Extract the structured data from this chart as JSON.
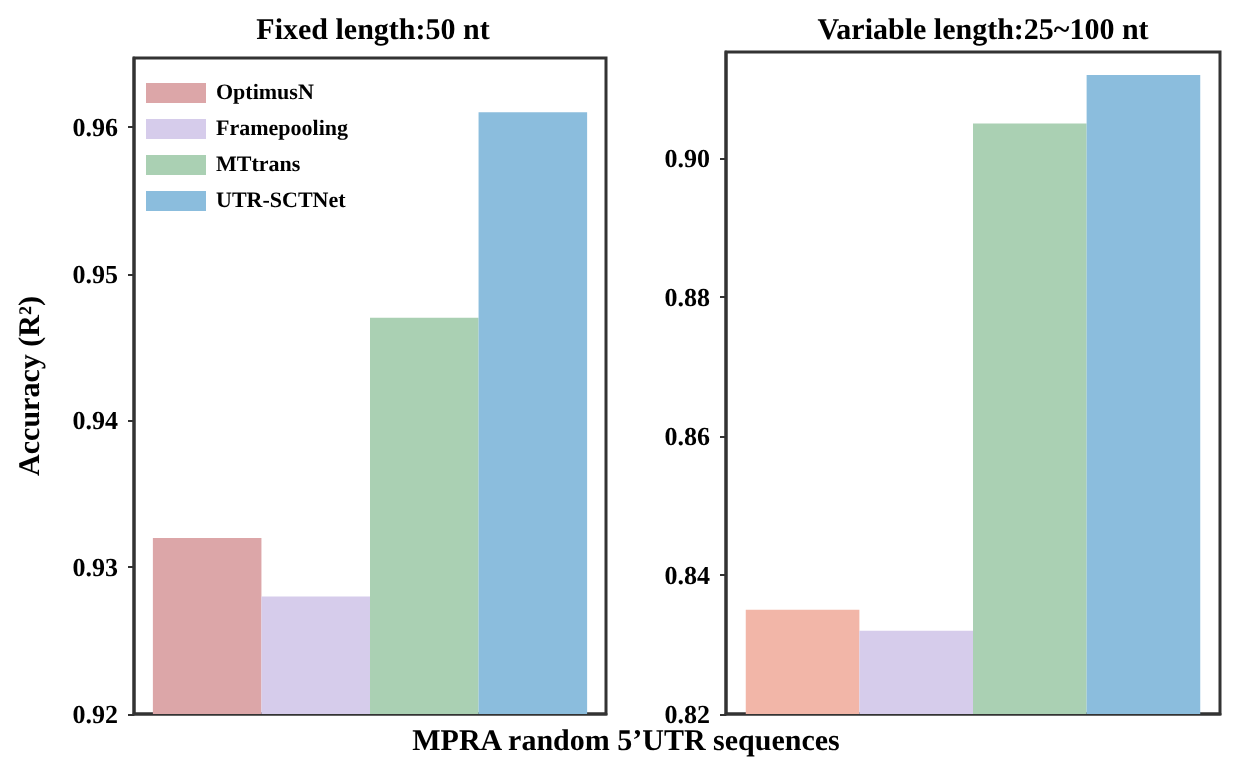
{
  "chart_data": [
    {
      "type": "bar",
      "title": "Fixed length:50 nt",
      "xlabel": "MPRA random 5’UTR sequences",
      "ylabel": "Accuracy (R²)",
      "categories": [
        null
      ],
      "series": [
        {
          "name": "OptimusN",
          "color": "#dca6a8",
          "values": [
            0.932
          ]
        },
        {
          "name": "Framepooling",
          "color": "#d6cceb",
          "values": [
            0.928
          ]
        },
        {
          "name": "MTtrans",
          "color": "#aad0b3",
          "values": [
            0.947
          ]
        },
        {
          "name": "UTR-SCTNet",
          "color": "#8bbddd",
          "values": [
            0.961
          ]
        }
      ],
      "ylim": [
        0.92,
        0.9647
      ],
      "yticks": [
        0.92,
        0.93,
        0.94,
        0.95,
        0.96
      ],
      "legend": "top left"
    },
    {
      "type": "bar",
      "title": "Variable length:25~100 nt",
      "categories": [
        null
      ],
      "series": [
        {
          "color": "#f2b6a8",
          "values": [
            0.835
          ]
        },
        {
          "color": "#d6cceb",
          "values": [
            0.832
          ]
        },
        {
          "color": "#aad0b3",
          "values": [
            0.905
          ]
        },
        {
          "color": "#8bbddd",
          "values": [
            0.912
          ]
        }
      ],
      "ylim": [
        0.82,
        0.9153
      ],
      "yticks": [
        0.82,
        0.84,
        0.86,
        0.88,
        {
          "value": 0.9,
          "label": "0.90"
        }
      ]
    }
  ]
}
